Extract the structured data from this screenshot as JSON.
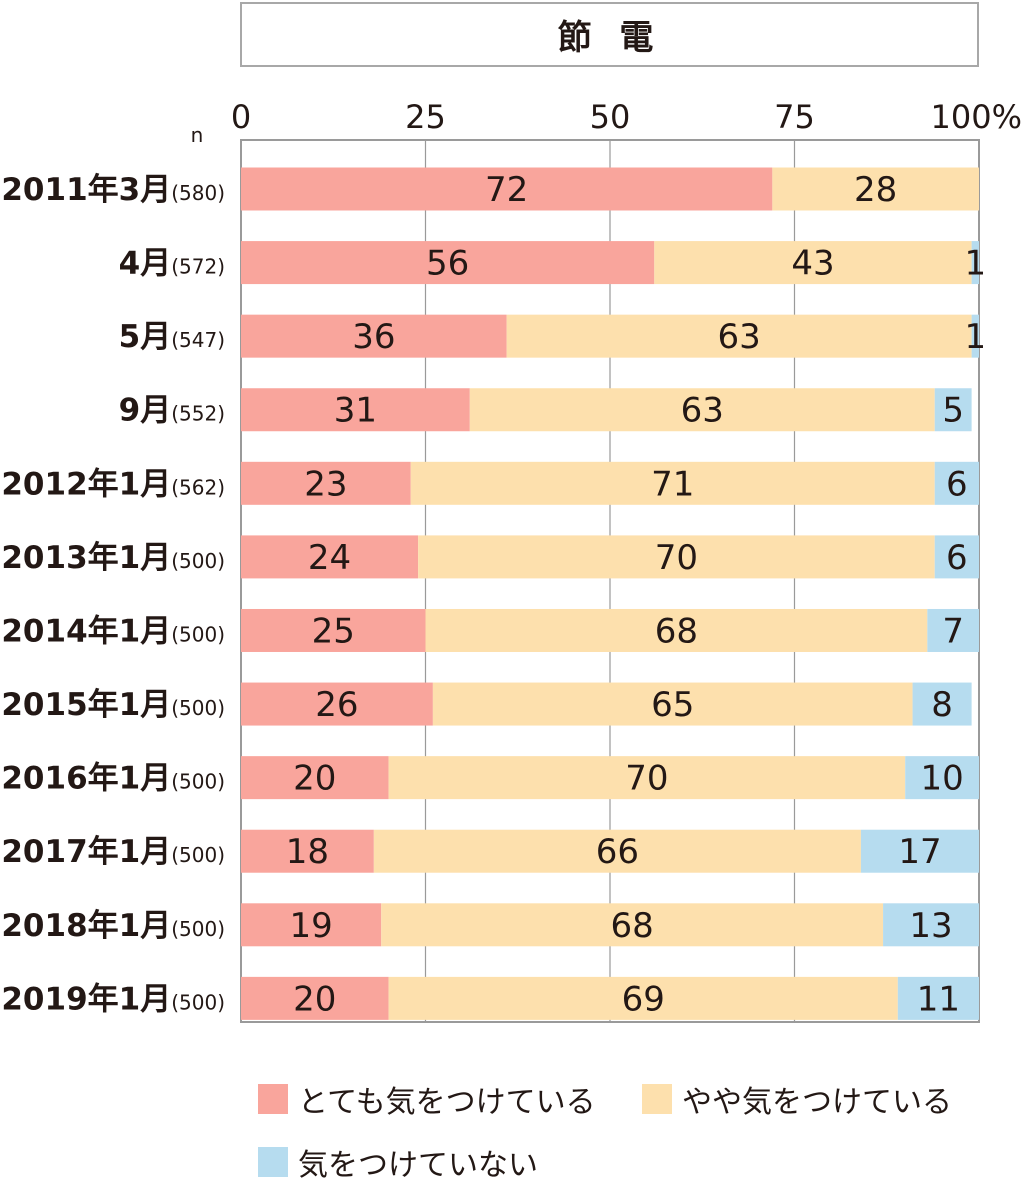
{
  "chart_data": {
    "type": "bar",
    "orientation": "horizontal",
    "stacked": true,
    "title": "節 電",
    "n_label": "n",
    "xlim": [
      0,
      100
    ],
    "x_ticks": [
      "0",
      "25",
      "50",
      "75",
      "100%"
    ],
    "grid": true,
    "legend_position": "bottom",
    "categories": [
      {
        "label": "2011年3月",
        "n": "(580)"
      },
      {
        "label": "4月",
        "n": "(572)"
      },
      {
        "label": "5月",
        "n": "(547)"
      },
      {
        "label": "9月",
        "n": "(552)"
      },
      {
        "label": "2012年1月",
        "n": "(562)"
      },
      {
        "label": "2013年1月",
        "n": "(500)"
      },
      {
        "label": "2014年1月",
        "n": "(500)"
      },
      {
        "label": "2015年1月",
        "n": "(500)"
      },
      {
        "label": "2016年1月",
        "n": "(500)"
      },
      {
        "label": "2017年1月",
        "n": "(500)"
      },
      {
        "label": "2018年1月",
        "n": "(500)"
      },
      {
        "label": "2019年1月",
        "n": "(500)"
      }
    ],
    "series": [
      {
        "name": "とても気をつけている",
        "color": "#f9a59c",
        "values": [
          72,
          56,
          36,
          31,
          23,
          24,
          25,
          26,
          20,
          18,
          19,
          20
        ]
      },
      {
        "name": "やや気をつけている",
        "color": "#fde0ad",
        "values": [
          28,
          43,
          63,
          63,
          71,
          70,
          68,
          65,
          70,
          66,
          68,
          69
        ]
      },
      {
        "name": "気をつけていない",
        "color": "#b6dcef",
        "values": [
          0,
          1,
          1,
          5,
          6,
          6,
          7,
          8,
          10,
          17,
          13,
          11
        ]
      }
    ]
  }
}
